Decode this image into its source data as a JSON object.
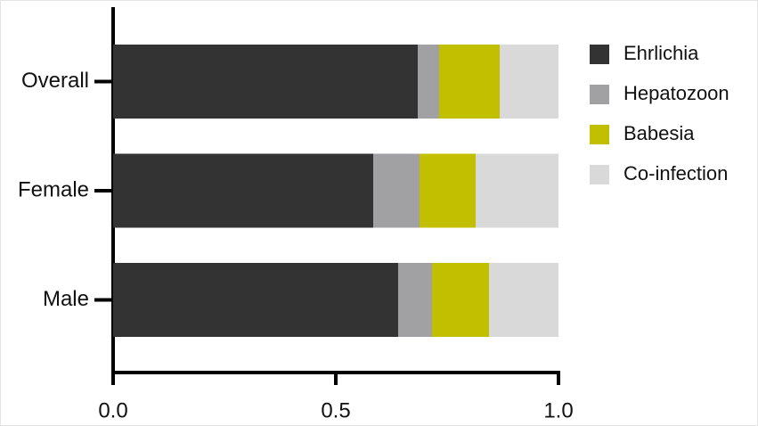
{
  "chart_data": {
    "type": "stacked-barh",
    "categories": [
      "Overall",
      "Female",
      "Male"
    ],
    "series": [
      {
        "name": "Ehrlichia",
        "color": "#333333",
        "values": [
          0.684,
          0.584,
          0.64
        ]
      },
      {
        "name": "Hepatozoon",
        "color": "#a1a1a4",
        "values": [
          0.048,
          0.104,
          0.076
        ]
      },
      {
        "name": "Babesia",
        "color": "#c2bf00",
        "values": [
          0.136,
          0.126,
          0.128
        ]
      },
      {
        "name": "Co-infection",
        "color": "#d9d9d9",
        "values": [
          0.132,
          0.186,
          0.156
        ]
      }
    ],
    "xlim": [
      0,
      1
    ],
    "xticks": [
      {
        "value": 0,
        "label": "0.0"
      },
      0.5,
      {
        "value": 1,
        "label": "1.0"
      }
    ],
    "legend": "right"
  }
}
